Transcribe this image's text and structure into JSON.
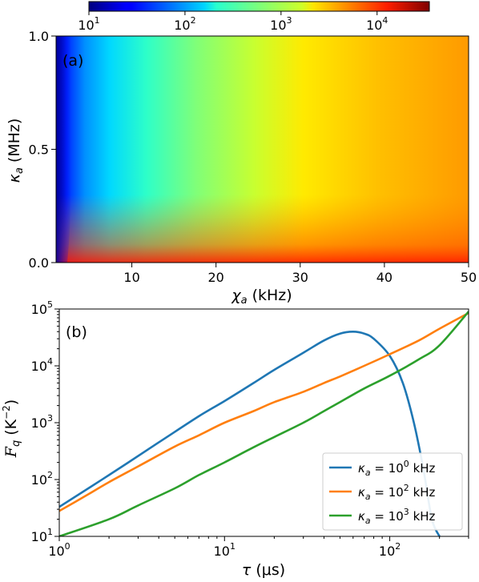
{
  "chart_data": [
    {
      "type": "heatmap",
      "panel_label": "(a)",
      "colorscale": "jet",
      "colorbar": {
        "scale": "log",
        "range": [
          10,
          35000
        ],
        "tick_values": [
          10,
          100,
          1000,
          10000
        ],
        "tick_labels": [
          {
            "base": "10",
            "exp": "1"
          },
          {
            "base": "10",
            "exp": "2"
          },
          {
            "base": "10",
            "exp": "3"
          },
          {
            "base": "10",
            "exp": "4"
          }
        ]
      },
      "x": {
        "label_symbol": "χ",
        "label_sub": "a",
        "label_unit": "(kHz)",
        "range": [
          1,
          50
        ],
        "ticks": [
          10,
          20,
          30,
          40,
          50
        ],
        "tick_labels": [
          "10",
          "20",
          "30",
          "40",
          "50"
        ]
      },
      "y": {
        "label_symbol": "κ",
        "label_sub": "a",
        "label_unit": "(MHz)",
        "range": [
          0,
          1
        ],
        "ticks": [
          0,
          0.5,
          1.0
        ],
        "tick_labels": [
          "0.0",
          "0.5",
          "1.0"
        ]
      },
      "description_values": {
        "min_region": "low χa, high κa ≈ 10",
        "max_region": "high χa, low κa ≈ 3×10^4"
      }
    },
    {
      "type": "line",
      "panel_label": "(b)",
      "x": {
        "label_symbol": "τ",
        "label_unit": "(μs)",
        "scale": "log",
        "range": [
          1,
          300
        ],
        "ticks": [
          1,
          10,
          100
        ],
        "tick_labels": [
          {
            "base": "10",
            "exp": "0"
          },
          {
            "base": "10",
            "exp": "1"
          },
          {
            "base": "10",
            "exp": "2"
          }
        ]
      },
      "y": {
        "label_symbol": "F",
        "label_sub": "q",
        "label_unit_base": "(K",
        "label_unit_exp": "−2",
        "label_unit_close": ")",
        "scale": "log",
        "range": [
          10,
          100000
        ],
        "ticks": [
          10,
          100,
          1000,
          10000,
          100000
        ],
        "tick_labels": [
          {
            "base": "10",
            "exp": "1"
          },
          {
            "base": "10",
            "exp": "2"
          },
          {
            "base": "10",
            "exp": "3"
          },
          {
            "base": "10",
            "exp": "4"
          },
          {
            "base": "10",
            "exp": "5"
          }
        ]
      },
      "legend": {
        "placement": "lower-right"
      },
      "series": [
        {
          "legend_prefix": "κ",
          "legend_sub": "a",
          "legend_eq": " = 10",
          "legend_exp": "0",
          "legend_unit": " kHz",
          "color": "#1f77b4",
          "points": [
            [
              1,
              33
            ],
            [
              2,
              120
            ],
            [
              4,
              450
            ],
            [
              7,
              1300
            ],
            [
              10,
              2400
            ],
            [
              15,
              5000
            ],
            [
              20,
              8500
            ],
            [
              30,
              17000
            ],
            [
              40,
              28000
            ],
            [
              50,
              37000
            ],
            [
              60,
              40000
            ],
            [
              70,
              37000
            ],
            [
              80,
              30000
            ],
            [
              100,
              15000
            ],
            [
              120,
              5000
            ],
            [
              140,
              1000
            ],
            [
              160,
              150
            ],
            [
              180,
              20
            ],
            [
              200,
              10
            ]
          ]
        },
        {
          "legend_prefix": "κ",
          "legend_sub": "a",
          "legend_eq": " = 10",
          "legend_exp": "2",
          "legend_unit": " kHz",
          "color": "#ff7f0e",
          "points": [
            [
              1,
              28
            ],
            [
              1.5,
              55
            ],
            [
              2,
              90
            ],
            [
              3,
              170
            ],
            [
              5,
              380
            ],
            [
              7,
              600
            ],
            [
              10,
              1000
            ],
            [
              15,
              1600
            ],
            [
              20,
              2300
            ],
            [
              30,
              3500
            ],
            [
              40,
              5000
            ],
            [
              50,
              6500
            ],
            [
              70,
              10000
            ],
            [
              100,
              16000
            ],
            [
              150,
              28000
            ],
            [
              200,
              45000
            ],
            [
              300,
              85000
            ]
          ]
        },
        {
          "legend_prefix": "κ",
          "legend_sub": "a",
          "legend_eq": " = 10",
          "legend_exp": "3",
          "legend_unit": " kHz",
          "color": "#2ca02c",
          "points": [
            [
              1,
              10
            ],
            [
              2,
              20
            ],
            [
              3,
              35
            ],
            [
              5,
              70
            ],
            [
              7,
              120
            ],
            [
              10,
              200
            ],
            [
              15,
              370
            ],
            [
              20,
              560
            ],
            [
              30,
              1000
            ],
            [
              40,
              1600
            ],
            [
              50,
              2300
            ],
            [
              70,
              4000
            ],
            [
              100,
              6700
            ],
            [
              150,
              13000
            ],
            [
              200,
              23000
            ],
            [
              300,
              90000
            ]
          ]
        }
      ]
    }
  ]
}
